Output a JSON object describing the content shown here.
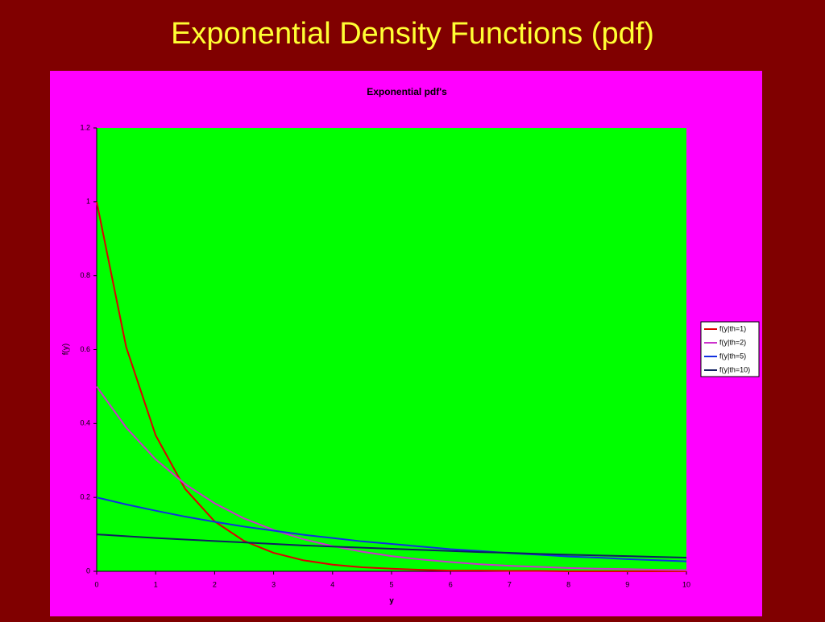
{
  "heading": "Exponential Density Functions (pdf)",
  "chart_data": {
    "type": "line",
    "title": "Exponential pdf's",
    "x_label": "y",
    "y_label": "f(y)",
    "x": [
      0,
      0.5,
      1,
      1.5,
      2,
      2.5,
      3,
      3.5,
      4,
      4.5,
      5,
      5.5,
      6,
      6.5,
      7,
      7.5,
      8,
      8.5,
      9,
      9.5,
      10
    ],
    "series": [
      {
        "name": "f(y|th=1)",
        "color": "#dd0000",
        "values": [
          1,
          0.607,
          0.368,
          0.223,
          0.135,
          0.082,
          0.05,
          0.03,
          0.018,
          0.011,
          0.007,
          0.004,
          0.002,
          0.002,
          0.001,
          0.001,
          0,
          0,
          0,
          0,
          0
        ]
      },
      {
        "name": "f(y|th=2)",
        "color": "#cc33cc",
        "values": [
          0.5,
          0.389,
          0.303,
          0.236,
          0.184,
          0.143,
          0.112,
          0.087,
          0.068,
          0.053,
          0.041,
          0.032,
          0.025,
          0.019,
          0.015,
          0.012,
          0.009,
          0.007,
          0.006,
          0.004,
          0.003
        ]
      },
      {
        "name": "f(y|th=5)",
        "color": "#1030e0",
        "values": [
          0.2,
          0.181,
          0.164,
          0.148,
          0.134,
          0.121,
          0.11,
          0.099,
          0.09,
          0.081,
          0.074,
          0.067,
          0.06,
          0.055,
          0.049,
          0.045,
          0.04,
          0.037,
          0.033,
          0.03,
          0.027
        ]
      },
      {
        "name": "f(y|th=10)",
        "color": "#102060",
        "values": [
          0.1,
          0.095,
          0.09,
          0.086,
          0.082,
          0.078,
          0.074,
          0.07,
          0.067,
          0.064,
          0.061,
          0.058,
          0.055,
          0.052,
          0.05,
          0.047,
          0.045,
          0.043,
          0.041,
          0.039,
          0.037
        ]
      }
    ],
    "xlim": [
      0,
      10
    ],
    "xticks": [
      0,
      1,
      2,
      3,
      4,
      5,
      6,
      7,
      8,
      9,
      10
    ],
    "ylim": [
      0,
      1.2
    ],
    "yticks": [
      0,
      0.2,
      0.4,
      0.6,
      0.8,
      1,
      1.2
    ],
    "grid": false,
    "legend": "right"
  }
}
